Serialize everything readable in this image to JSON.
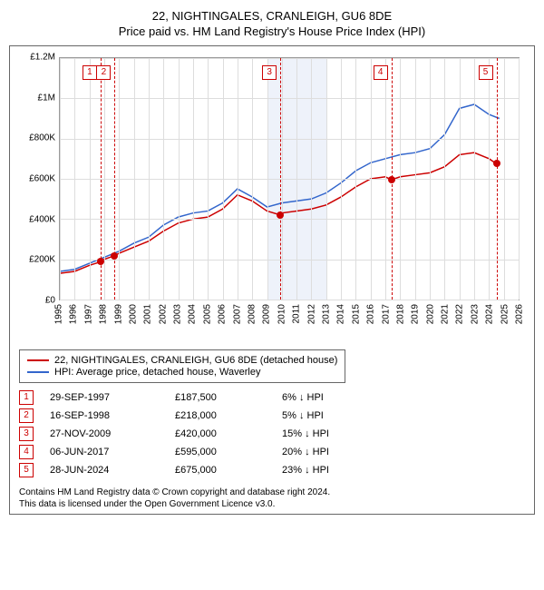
{
  "title": {
    "main": "22, NIGHTINGALES, CRANLEIGH, GU6 8DE",
    "sub": "Price paid vs. HM Land Registry's House Price Index (HPI)"
  },
  "chart": {
    "type": "line",
    "background_color": "#ffffff",
    "grid_color": "#dddddd",
    "border_color": "#999999",
    "y_axis": {
      "min": 0,
      "max": 1200000,
      "ticks": [
        0,
        200000,
        400000,
        600000,
        800000,
        1000000,
        1200000
      ],
      "labels": [
        "£0",
        "£200K",
        "£400K",
        "£600K",
        "£800K",
        "£1M",
        "£1.2M"
      ],
      "label_fontsize": 10
    },
    "x_axis": {
      "min": 1995,
      "max": 2026,
      "ticks": [
        1995,
        1996,
        1997,
        1998,
        1999,
        2000,
        2001,
        2002,
        2003,
        2004,
        2005,
        2006,
        2007,
        2008,
        2009,
        2010,
        2011,
        2012,
        2013,
        2014,
        2015,
        2016,
        2017,
        2018,
        2019,
        2020,
        2021,
        2022,
        2023,
        2024,
        2025,
        2026
      ],
      "label_fontsize": 10
    },
    "shaded_region": {
      "from": 2009,
      "to": 2013,
      "color": "#eef2fa"
    },
    "series": [
      {
        "label": "22, NIGHTINGALES, CRANLEIGH, GU6 8DE (detached house)",
        "color": "#cc0000",
        "line_width": 1.5,
        "data": [
          [
            1995,
            130000
          ],
          [
            1996,
            140000
          ],
          [
            1997,
            170000
          ],
          [
            1997.75,
            187500
          ],
          [
            1998,
            200000
          ],
          [
            1998.7,
            218000
          ],
          [
            1999,
            230000
          ],
          [
            2000,
            260000
          ],
          [
            2001,
            290000
          ],
          [
            2002,
            340000
          ],
          [
            2003,
            380000
          ],
          [
            2004,
            400000
          ],
          [
            2005,
            410000
          ],
          [
            2006,
            450000
          ],
          [
            2007,
            520000
          ],
          [
            2008,
            490000
          ],
          [
            2009,
            440000
          ],
          [
            2009.9,
            420000
          ],
          [
            2010,
            430000
          ],
          [
            2011,
            440000
          ],
          [
            2012,
            450000
          ],
          [
            2013,
            470000
          ],
          [
            2014,
            510000
          ],
          [
            2015,
            560000
          ],
          [
            2016,
            600000
          ],
          [
            2017,
            610000
          ],
          [
            2017.4,
            595000
          ],
          [
            2018,
            610000
          ],
          [
            2019,
            620000
          ],
          [
            2020,
            630000
          ],
          [
            2021,
            660000
          ],
          [
            2022,
            720000
          ],
          [
            2023,
            730000
          ],
          [
            2024,
            700000
          ],
          [
            2024.5,
            675000
          ]
        ]
      },
      {
        "label": "HPI: Average price, detached house, Waverley",
        "color": "#3366cc",
        "line_width": 1.5,
        "data": [
          [
            1995,
            140000
          ],
          [
            1996,
            150000
          ],
          [
            1997,
            180000
          ],
          [
            1998,
            210000
          ],
          [
            1999,
            240000
          ],
          [
            2000,
            280000
          ],
          [
            2001,
            310000
          ],
          [
            2002,
            370000
          ],
          [
            2003,
            410000
          ],
          [
            2004,
            430000
          ],
          [
            2005,
            440000
          ],
          [
            2006,
            480000
          ],
          [
            2007,
            550000
          ],
          [
            2008,
            510000
          ],
          [
            2009,
            460000
          ],
          [
            2010,
            480000
          ],
          [
            2011,
            490000
          ],
          [
            2012,
            500000
          ],
          [
            2013,
            530000
          ],
          [
            2014,
            580000
          ],
          [
            2015,
            640000
          ],
          [
            2016,
            680000
          ],
          [
            2017,
            700000
          ],
          [
            2018,
            720000
          ],
          [
            2019,
            730000
          ],
          [
            2020,
            750000
          ],
          [
            2021,
            820000
          ],
          [
            2022,
            950000
          ],
          [
            2023,
            970000
          ],
          [
            2024,
            920000
          ],
          [
            2024.7,
            900000
          ]
        ]
      }
    ],
    "markers": [
      {
        "n": "1",
        "year": 1997.75,
        "value": 187500
      },
      {
        "n": "2",
        "year": 1998.7,
        "value": 218000
      },
      {
        "n": "3",
        "year": 2009.9,
        "value": 420000
      },
      {
        "n": "4",
        "year": 2017.4,
        "value": 595000
      },
      {
        "n": "5",
        "year": 2024.5,
        "value": 675000
      }
    ],
    "marker_color": "#cc0000"
  },
  "legend": {
    "items": [
      {
        "color": "#cc0000",
        "label": "22, NIGHTINGALES, CRANLEIGH, GU6 8DE (detached house)"
      },
      {
        "color": "#3366cc",
        "label": "HPI: Average price, detached house, Waverley"
      }
    ]
  },
  "transactions": [
    {
      "n": "1",
      "date": "29-SEP-1997",
      "price": "£187,500",
      "delta": "6% ↓ HPI"
    },
    {
      "n": "2",
      "date": "16-SEP-1998",
      "price": "£218,000",
      "delta": "5% ↓ HPI"
    },
    {
      "n": "3",
      "date": "27-NOV-2009",
      "price": "£420,000",
      "delta": "15% ↓ HPI"
    },
    {
      "n": "4",
      "date": "06-JUN-2017",
      "price": "£595,000",
      "delta": "20% ↓ HPI"
    },
    {
      "n": "5",
      "date": "28-JUN-2024",
      "price": "£675,000",
      "delta": "23% ↓ HPI"
    }
  ],
  "footer": {
    "line1": "Contains HM Land Registry data © Crown copyright and database right 2024.",
    "line2": "This data is licensed under the Open Government Licence v3.0."
  }
}
